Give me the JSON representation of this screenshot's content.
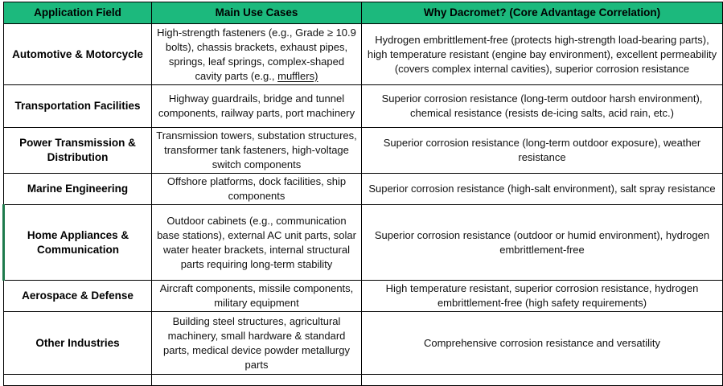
{
  "colors": {
    "header_bg": "#1CB97D",
    "border": "#000000",
    "highlight_edge": "#1E7A4C"
  },
  "table": {
    "headers": [
      "Application Field",
      "Main Use Cases",
      "Why Dacromet? (Core Advantage Correlation)"
    ],
    "rows": [
      {
        "field": "Automotive & Motorcycle",
        "use_cases": "High-strength fasteners (e.g., Grade ≥ 10.9 bolts), chassis brackets, exhaust pipes, springs, leaf springs, complex-shaped cavity parts (e.g., ",
        "use_cases_underlined": "mufflers)",
        "why": "Hydrogen embrittlement-free (protects high-strength load-bearing parts), high temperature resistant (engine bay environment), excellent permeability (covers complex internal cavities), superior corrosion resistance"
      },
      {
        "field": "Transportation Facilities",
        "use_cases": "Highway guardrails, bridge and tunnel components, railway parts, port machinery",
        "why": "Superior corrosion resistance (long-term outdoor harsh environment), chemical resistance (resists de-icing salts, acid rain, etc.)"
      },
      {
        "field": "Power Transmission & Distribution",
        "use_cases": "Transmission towers, substation structures, transformer tank fasteners, high-voltage switch components",
        "why": "Superior corrosion resistance (long-term outdoor exposure), weather resistance"
      },
      {
        "field": "Marine Engineering",
        "use_cases": "Offshore platforms, dock facilities, ship components",
        "why": "Superior corrosion resistance (high-salt environment), salt spray resistance"
      },
      {
        "field": "Home Appliances & Communication",
        "use_cases": "Outdoor cabinets (e.g., communication base stations), external AC unit parts, solar water heater brackets, internal structural parts requiring long-term stability",
        "why": "Superior corrosion resistance (outdoor or humid environment), hydrogen embrittlement-free"
      },
      {
        "field": "Aerospace & Defense",
        "use_cases": "Aircraft components, missile components, military equipment",
        "why": "High temperature resistant, superior corrosion resistance, hydrogen embrittlement-free (high safety requirements)"
      },
      {
        "field": "Other Industries",
        "use_cases": "Building steel structures, agricultural machinery, small hardware & standard parts, medical device powder metallurgy parts",
        "why": "Comprehensive corrosion resistance and versatility"
      }
    ]
  }
}
